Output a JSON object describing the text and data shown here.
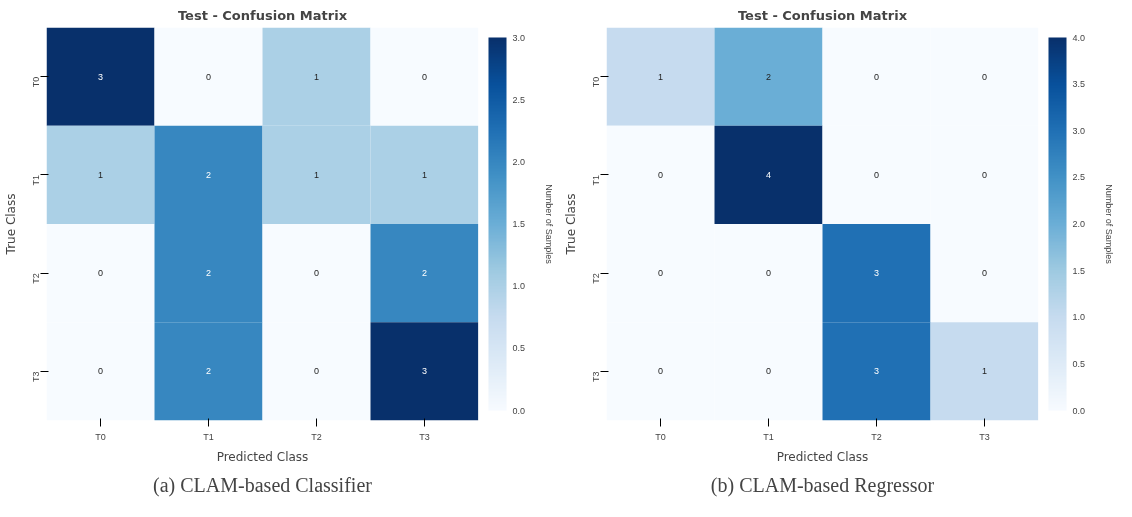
{
  "chart_data": [
    {
      "type": "heatmap",
      "title": "Test - Confusion Matrix",
      "xlabel": "Predicted Class",
      "ylabel": "True Class",
      "clabel": "Number of Samples",
      "categories": [
        "T0",
        "T1",
        "T2",
        "T3"
      ],
      "y_categories": [
        "T0",
        "T1",
        "T2",
        "T3"
      ],
      "cells": [
        [
          3,
          0,
          1,
          0
        ],
        [
          1,
          2,
          1,
          1
        ],
        [
          0,
          2,
          0,
          2
        ],
        [
          0,
          2,
          0,
          3
        ]
      ],
      "clim": [
        0,
        3
      ],
      "cticks": [
        {
          "value": 0,
          "label": "0.0"
        },
        {
          "value": 0.5,
          "label": "0.5"
        },
        {
          "value": 1,
          "label": "1.0"
        },
        {
          "value": 1.5,
          "label": "1.5"
        },
        {
          "value": 2,
          "label": "2.0"
        },
        {
          "value": 2.5,
          "label": "2.5"
        },
        {
          "value": 3,
          "label": "3.0"
        }
      ],
      "data_labels": true,
      "grid": false,
      "annotations": [
        "(a) CLAM-based Classifier"
      ]
    },
    {
      "type": "heatmap",
      "title": "Test - Confusion Matrix",
      "xlabel": "Predicted Class",
      "ylabel": "True Class",
      "clabel": "Number of Samples",
      "categories": [
        "T0",
        "T1",
        "T2",
        "T3"
      ],
      "y_categories": [
        "T0",
        "T1",
        "T2",
        "T3"
      ],
      "cells": [
        [
          1,
          2,
          0,
          0
        ],
        [
          0,
          4,
          0,
          0
        ],
        [
          0,
          0,
          3,
          0
        ],
        [
          0,
          0,
          3,
          1
        ]
      ],
      "clim": [
        0,
        4
      ],
      "cticks": [
        {
          "value": 0,
          "label": "0.0"
        },
        {
          "value": 0.5,
          "label": "0.5"
        },
        {
          "value": 1,
          "label": "1.0"
        },
        {
          "value": 1.5,
          "label": "1.5"
        },
        {
          "value": 2,
          "label": "2.0"
        },
        {
          "value": 2.5,
          "label": "2.5"
        },
        {
          "value": 3,
          "label": "3.0"
        },
        {
          "value": 3.5,
          "label": "3.5"
        },
        {
          "value": 4,
          "label": "4.0"
        }
      ],
      "data_labels": true,
      "grid": false,
      "annotations": [
        "(b) CLAM-based Regressor"
      ]
    }
  ]
}
